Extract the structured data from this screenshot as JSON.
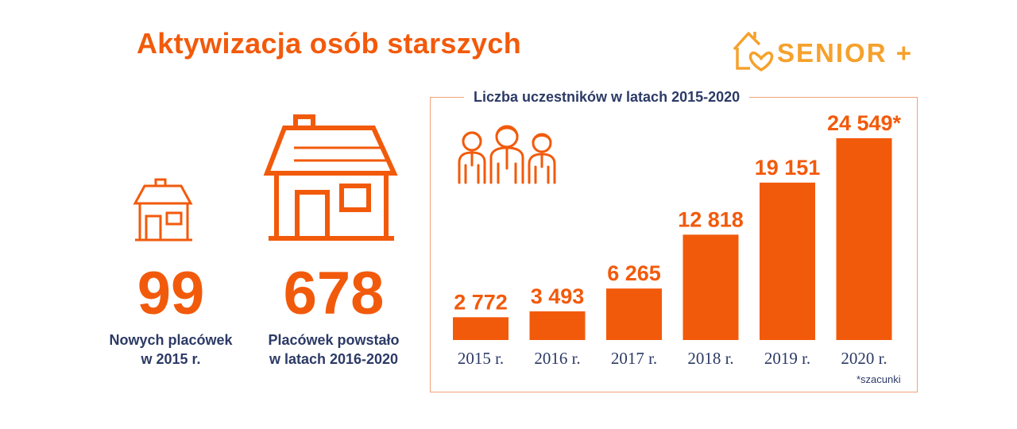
{
  "title": "Aktywizacja osób starszych",
  "logo": {
    "text": "SENIOR +"
  },
  "stats": [
    {
      "value": "99",
      "caption_line1": "Nowych placówek",
      "caption_line2": "w 2015 r."
    },
    {
      "value": "678",
      "caption_line1": "Placówek powstało",
      "caption_line2": "w latach 2016-2020"
    }
  ],
  "colors": {
    "accent": "#f25a0b",
    "logo": "#f6a12c",
    "text": "#2c3a66",
    "frame": "#f3a27a"
  },
  "icons": [
    "house-icon",
    "people-icon",
    "senior-plus-logo-icon"
  ],
  "chart_data": {
    "type": "bar",
    "title": "Liczba uczestników w latach 2015-2020",
    "categories": [
      "2015 r.",
      "2016 r.",
      "2017 r.",
      "2018 r.",
      "2019 r.",
      "2020 r."
    ],
    "values": [
      2772,
      3493,
      6265,
      12818,
      19151,
      24549
    ],
    "value_labels": [
      "2 772",
      "3 493",
      "6 265",
      "12 818",
      "19 151",
      "24 549*"
    ],
    "footnote": "*szacunki",
    "xlabel": "",
    "ylabel": "",
    "grid": false,
    "legend": "none"
  }
}
